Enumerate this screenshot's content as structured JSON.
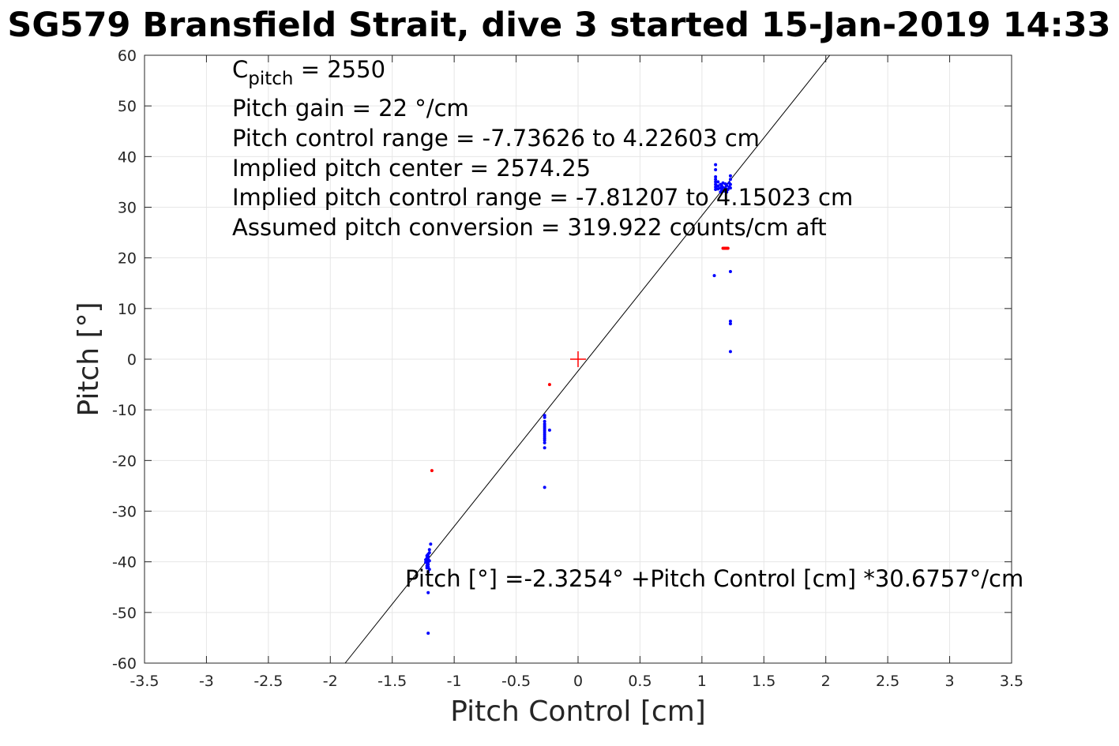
{
  "chart_data": {
    "type": "scatter",
    "title": "SG579 Bransfield Strait, dive 3 started 15-Jan-2019 14:33",
    "xlabel": "Pitch Control [cm]",
    "ylabel": "Pitch [°]",
    "xlim": [
      -3.5,
      3.5
    ],
    "ylim": [
      -60,
      60
    ],
    "xticks": [
      -3.5,
      -3,
      -2.5,
      -2,
      -1.5,
      -1,
      -0.5,
      0,
      0.5,
      1,
      1.5,
      2,
      2.5,
      3,
      3.5
    ],
    "yticks": [
      -60,
      -50,
      -40,
      -30,
      -20,
      -10,
      0,
      10,
      20,
      30,
      40,
      50,
      60
    ],
    "xtick_labels": [
      "-3.5",
      "-3",
      "-2.5",
      "-2",
      "-1.5",
      "-1",
      "-0.5",
      "0",
      "0.5",
      "1",
      "1.5",
      "2",
      "2.5",
      "3",
      "3.5"
    ],
    "ytick_labels": [
      "-60",
      "-50",
      "-40",
      "-30",
      "-20",
      "-10",
      "0",
      "10",
      "20",
      "30",
      "40",
      "50",
      "60"
    ],
    "grid": true,
    "annotations": {
      "c_pitch_prefix": "C",
      "c_pitch_sub": "pitch",
      "c_pitch_value": " = 2550",
      "lines": [
        "Pitch gain = 22 °/cm",
        "Pitch control range = -7.73626 to 4.22603 cm",
        "Implied pitch center = 2574.25",
        "Implied pitch control range = -7.81207 to 4.15023 cm",
        "Assumed pitch conversion = 319.922 counts/cm aft"
      ],
      "fit_equation": "Pitch [°] =-2.3254° +Pitch Control [cm] *30.6757°/cm"
    },
    "fit_line": {
      "intercept": -2.3254,
      "slope": 30.6757,
      "color": "#000000"
    },
    "center_marker": {
      "x": 0,
      "y": 0,
      "color": "#ff0000"
    },
    "series": [
      {
        "color": "#0000ff",
        "points": [
          [
            -1.21,
            -38.5
          ],
          [
            -1.21,
            -39.0
          ],
          [
            -1.21,
            -39.5
          ],
          [
            -1.21,
            -40.0
          ],
          [
            -1.21,
            -40.5
          ],
          [
            -1.21,
            -41.0
          ],
          [
            -1.22,
            -38.8
          ],
          [
            -1.22,
            -39.3
          ],
          [
            -1.22,
            -40.2
          ],
          [
            -1.22,
            -40.8
          ],
          [
            -1.23,
            -39.6
          ],
          [
            -1.23,
            -40.1
          ],
          [
            -1.2,
            -38.2
          ],
          [
            -1.2,
            -39.8
          ],
          [
            -1.2,
            -41.5
          ],
          [
            -1.19,
            -36.5
          ],
          [
            -1.2,
            -37.6
          ],
          [
            -1.21,
            -42.0
          ],
          [
            -1.22,
            -41.2
          ],
          [
            -1.21,
            -46.1
          ],
          [
            -1.21,
            -54.1
          ],
          [
            -0.27,
            -11.1
          ],
          [
            -0.27,
            -11.5
          ],
          [
            -0.27,
            -12.3
          ],
          [
            -0.27,
            -12.8
          ],
          [
            -0.27,
            -13.2
          ],
          [
            -0.27,
            -13.6
          ],
          [
            -0.27,
            -14.0
          ],
          [
            -0.27,
            -14.4
          ],
          [
            -0.27,
            -14.8
          ],
          [
            -0.27,
            -15.2
          ],
          [
            -0.27,
            -15.6
          ],
          [
            -0.27,
            -16.0
          ],
          [
            -0.27,
            -16.5
          ],
          [
            -0.27,
            -17.5
          ],
          [
            -0.23,
            -14.0
          ],
          [
            -0.27,
            -25.3
          ],
          [
            1.11,
            38.4
          ],
          [
            1.11,
            37.4
          ],
          [
            1.11,
            36.0
          ],
          [
            1.11,
            35.5
          ],
          [
            1.11,
            35.0
          ],
          [
            1.11,
            34.5
          ],
          [
            1.11,
            34.0
          ],
          [
            1.11,
            33.5
          ],
          [
            1.13,
            35.0
          ],
          [
            1.13,
            34.2
          ],
          [
            1.13,
            33.6
          ],
          [
            1.15,
            34.5
          ],
          [
            1.15,
            33.8
          ],
          [
            1.15,
            33.0
          ],
          [
            1.16,
            34.2
          ],
          [
            1.16,
            33.4
          ],
          [
            1.17,
            34.8
          ],
          [
            1.17,
            33.9
          ],
          [
            1.18,
            33.2
          ],
          [
            1.19,
            34.6
          ],
          [
            1.19,
            33.8
          ],
          [
            1.2,
            33.0
          ],
          [
            1.2,
            34.3
          ],
          [
            1.21,
            33.5
          ],
          [
            1.22,
            34.8
          ],
          [
            1.22,
            34.0
          ],
          [
            1.23,
            36.2
          ],
          [
            1.23,
            35.5
          ],
          [
            1.23,
            34.5
          ],
          [
            1.23,
            33.8
          ],
          [
            1.1,
            16.5
          ],
          [
            1.23,
            17.3
          ],
          [
            1.23,
            7.5
          ],
          [
            1.23,
            7.0
          ],
          [
            1.23,
            1.5
          ]
        ]
      },
      {
        "color": "#ff0000",
        "points": [
          [
            -1.18,
            -22.0
          ],
          [
            -0.23,
            -5.0
          ],
          [
            1.17,
            21.9
          ],
          [
            1.18,
            21.9
          ],
          [
            1.19,
            21.9
          ],
          [
            1.2,
            21.9
          ],
          [
            1.21,
            21.9
          ]
        ]
      }
    ]
  }
}
